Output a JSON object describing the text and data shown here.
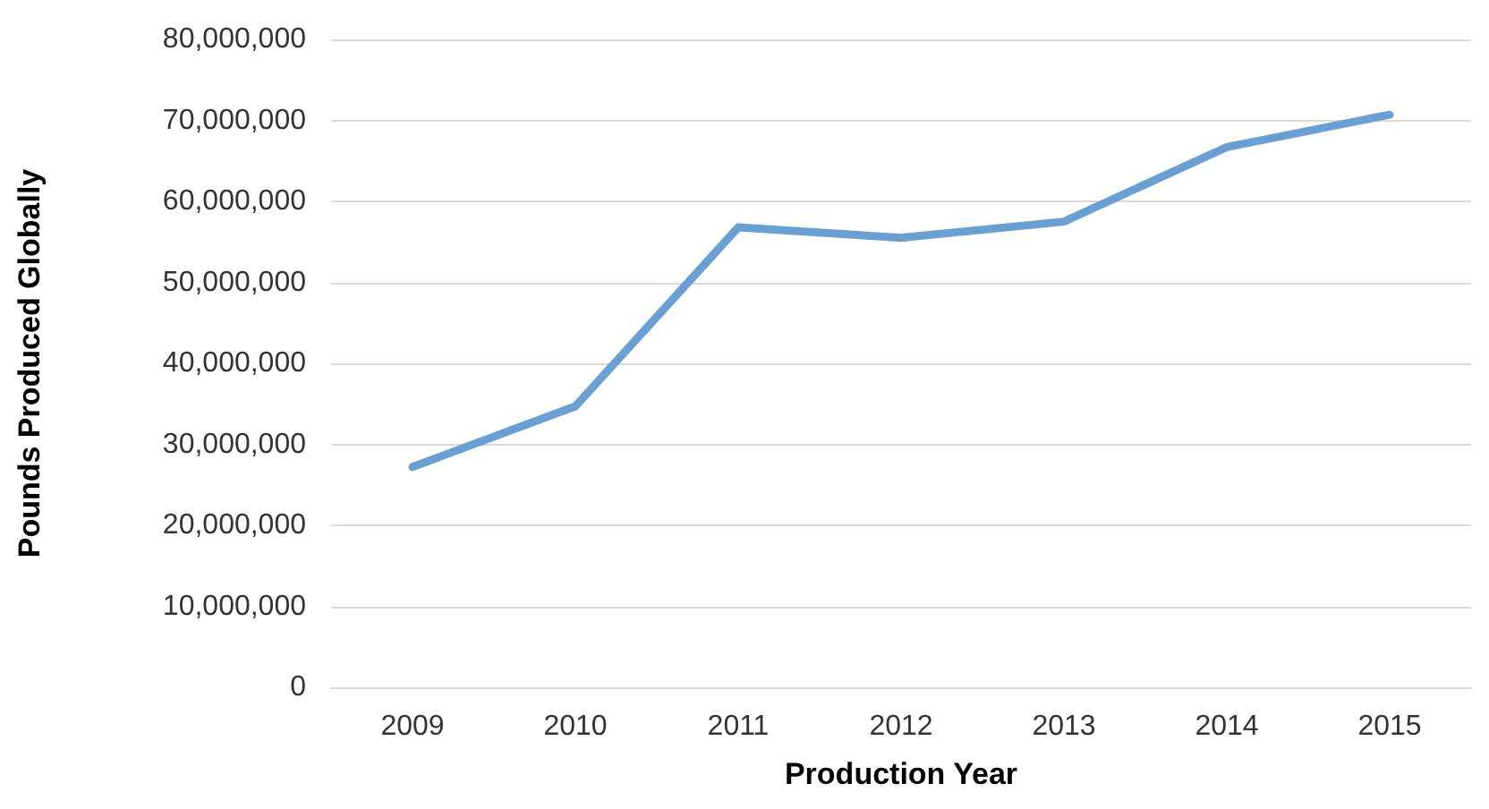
{
  "chart_data": {
    "type": "line",
    "xlabel": "Production Year",
    "ylabel": "Pounds Produced Globally",
    "categories": [
      "2009",
      "2010",
      "2011",
      "2012",
      "2013",
      "2014",
      "2015"
    ],
    "series": [
      {
        "color": "#6a9fd4",
        "values": [
          27200000,
          34700000,
          56800000,
          55500000,
          57500000,
          66700000,
          70700000
        ]
      }
    ],
    "ylim": [
      0,
      80000000
    ],
    "yticks": [
      0,
      {
        "value": 10000000,
        "label": "10,000,000"
      },
      {
        "value": 20000000,
        "label": "20,000,000"
      },
      {
        "value": 30000000,
        "label": "30,000,000"
      },
      {
        "value": 40000000,
        "label": "40,000,000"
      },
      {
        "value": 50000000,
        "label": "50,000,000"
      },
      {
        "value": 60000000,
        "label": "60,000,000"
      },
      {
        "value": 70000000,
        "label": "70,000,000"
      },
      {
        "value": 80000000,
        "label": "80,000,000"
      }
    ],
    "grid": "y",
    "marker": "none",
    "line_style": "solid"
  }
}
